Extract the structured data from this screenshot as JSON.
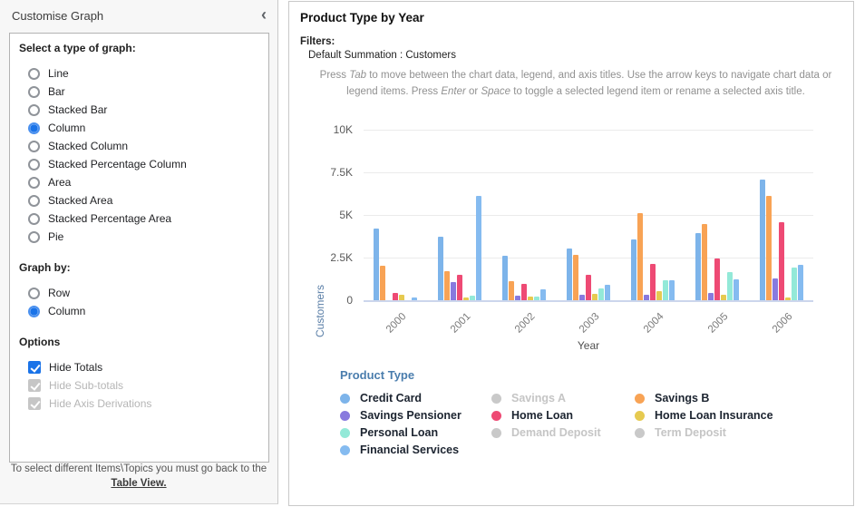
{
  "left_panel": {
    "title": "Customise Graph",
    "collapse_icon": "‹",
    "graph_type_label": "Select a type of graph:",
    "graph_types": [
      {
        "label": "Line",
        "selected": false
      },
      {
        "label": "Bar",
        "selected": false
      },
      {
        "label": "Stacked Bar",
        "selected": false
      },
      {
        "label": "Column",
        "selected": true
      },
      {
        "label": "Stacked Column",
        "selected": false
      },
      {
        "label": "Stacked Percentage Column",
        "selected": false
      },
      {
        "label": "Area",
        "selected": false
      },
      {
        "label": "Stacked Area",
        "selected": false
      },
      {
        "label": "Stacked Percentage Area",
        "selected": false
      },
      {
        "label": "Pie",
        "selected": false
      }
    ],
    "graph_by_label": "Graph by:",
    "graph_by": [
      {
        "label": "Row",
        "selected": false
      },
      {
        "label": "Column",
        "selected": true
      }
    ],
    "options_label": "Options",
    "options": [
      {
        "label": "Hide Totals",
        "checked": true,
        "disabled": false
      },
      {
        "label": "Hide Sub-totals",
        "checked": true,
        "disabled": true
      },
      {
        "label": "Hide Axis Derivations",
        "checked": true,
        "disabled": true
      }
    ],
    "footer_text": "To select different Items\\Topics you must go back to the",
    "footer_link": "Table View."
  },
  "right_panel": {
    "title": "Product Type by Year",
    "filters_label": "Filters:",
    "filters_value": "Default Summation : Customers",
    "instructions_segments": [
      {
        "t": "Press "
      },
      {
        "t": "Tab",
        "i": true
      },
      {
        "t": " to move between the chart data, legend, and axis titles. Use the arrow keys to navigate chart data or legend items. Press "
      },
      {
        "t": "Enter",
        "i": true
      },
      {
        "t": " or "
      },
      {
        "t": "Space",
        "i": true
      },
      {
        "t": " to toggle a selected legend item or rename a selected axis title."
      }
    ]
  },
  "chart_data": {
    "type": "bar",
    "title": "Product Type by Year",
    "xlabel": "Year",
    "ylabel": "Customers",
    "ylim": [
      0,
      10000
    ],
    "yticks": [
      "10K",
      "7.5K",
      "5K",
      "2.5K",
      "0"
    ],
    "grid": true,
    "legend_title": "Product Type",
    "legend_position": "bottom",
    "categories": [
      "2000",
      "2001",
      "2002",
      "2003",
      "2004",
      "2005",
      "2006"
    ],
    "series": [
      {
        "name": "Credit Card",
        "color": "#7db4ea",
        "values": [
          4200,
          3700,
          2600,
          3050,
          3550,
          3950,
          7100
        ]
      },
      {
        "name": "Savings B",
        "color": "#f8a355",
        "values": [
          2000,
          1700,
          1100,
          2650,
          5100,
          4450,
          6100
        ]
      },
      {
        "name": "Savings Pensioner",
        "color": "#887ade",
        "values": [
          0,
          1050,
          270,
          330,
          300,
          450,
          1300
        ]
      },
      {
        "name": "Home Loan",
        "color": "#ee4a74",
        "values": [
          420,
          1500,
          960,
          1500,
          2150,
          2450,
          4550
        ]
      },
      {
        "name": "Home Loan Insurance",
        "color": "#e6ca50",
        "values": [
          300,
          180,
          200,
          350,
          550,
          320,
          160
        ]
      },
      {
        "name": "Personal Loan",
        "color": "#93e9d8",
        "values": [
          0,
          250,
          200,
          700,
          1150,
          1650,
          1900
        ]
      },
      {
        "name": "Financial Services",
        "color": "#85bbf0",
        "values": [
          150,
          6100,
          650,
          900,
          1150,
          1200,
          2100
        ]
      }
    ],
    "legend_items": [
      {
        "name": "Credit Card",
        "color": "#7db4ea",
        "enabled": true
      },
      {
        "name": "Savings A",
        "color": "#c9c9c9",
        "enabled": false
      },
      {
        "name": "Savings B",
        "color": "#f8a355",
        "enabled": true
      },
      {
        "name": "Savings Pensioner",
        "color": "#887ade",
        "enabled": true
      },
      {
        "name": "Home Loan",
        "color": "#ee4a74",
        "enabled": true
      },
      {
        "name": "Home Loan Insurance",
        "color": "#e6ca50",
        "enabled": true
      },
      {
        "name": "Personal Loan",
        "color": "#93e9d8",
        "enabled": true
      },
      {
        "name": "Demand Deposit",
        "color": "#c9c9c9",
        "enabled": false
      },
      {
        "name": "Term Deposit",
        "color": "#c9c9c9",
        "enabled": false
      },
      {
        "name": "Financial Services",
        "color": "#85bbf0",
        "enabled": true
      }
    ]
  }
}
